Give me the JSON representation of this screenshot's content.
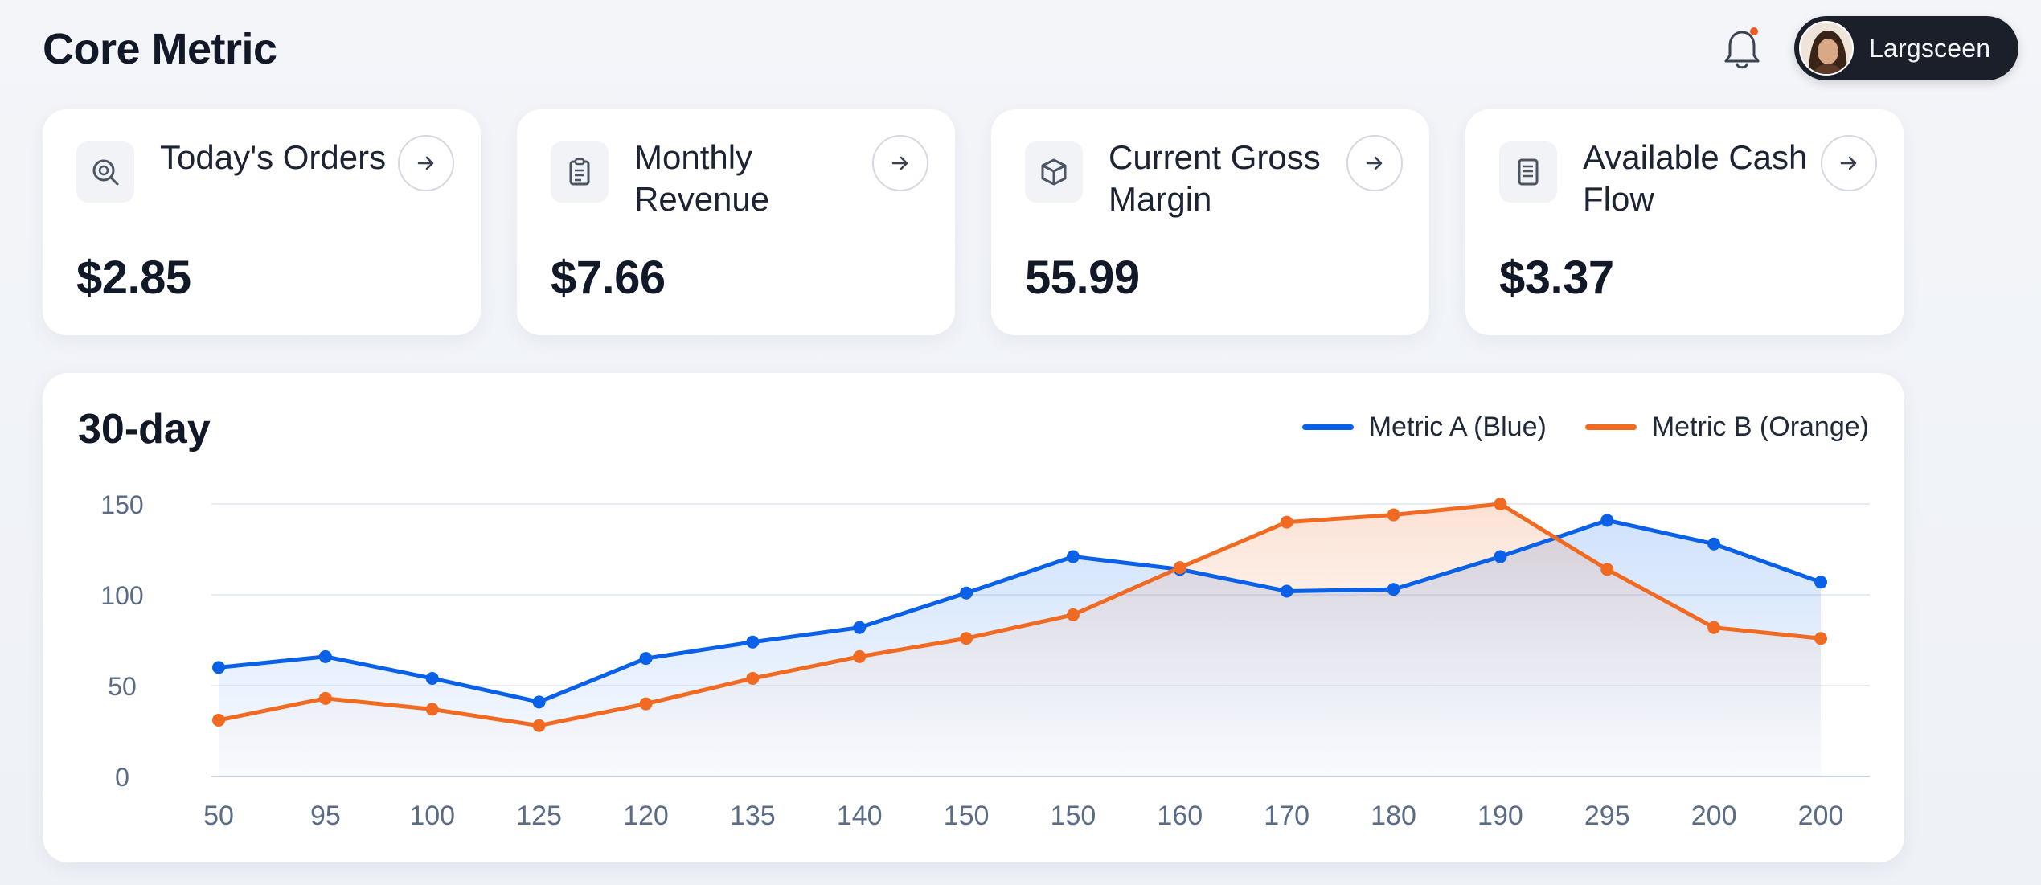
{
  "header": {
    "title": "Core Metric",
    "user_name": "Largsceen",
    "notification_dot_color": "#ef5a24"
  },
  "cards": [
    {
      "label": "Today's Orders",
      "value": "$2.85",
      "icon": "search-icon"
    },
    {
      "label": "Monthly Revenue",
      "value": "$7.66",
      "icon": "clipboard-icon"
    },
    {
      "label": "Current Gross Margin",
      "value": "55.99",
      "icon": "box-icon"
    },
    {
      "label": "Available Cash Flow",
      "value": "$3.37",
      "icon": "document-icon"
    }
  ],
  "chart_data": {
    "type": "line",
    "title": "30-day",
    "categories": [
      "50",
      "95",
      "100",
      "125",
      "120",
      "135",
      "140",
      "150",
      "150",
      "160",
      "170",
      "180",
      "190",
      "295",
      "200",
      "200"
    ],
    "ylim": [
      0,
      150
    ],
    "yticks": [
      0,
      50,
      100,
      150
    ],
    "grid": true,
    "legend_position": "top-right",
    "series": [
      {
        "name": "Metric A (Blue)",
        "color": "#0a60e6",
        "values": [
          60,
          66,
          54,
          41,
          65,
          74,
          82,
          101,
          121,
          114,
          102,
          103,
          121,
          141,
          128,
          107
        ]
      },
      {
        "name": "Metric B (Orange)",
        "color": "#f06a22",
        "values": [
          31,
          43,
          37,
          28,
          40,
          54,
          66,
          76,
          89,
          115,
          140,
          144,
          150,
          114,
          82,
          76
        ]
      }
    ]
  }
}
